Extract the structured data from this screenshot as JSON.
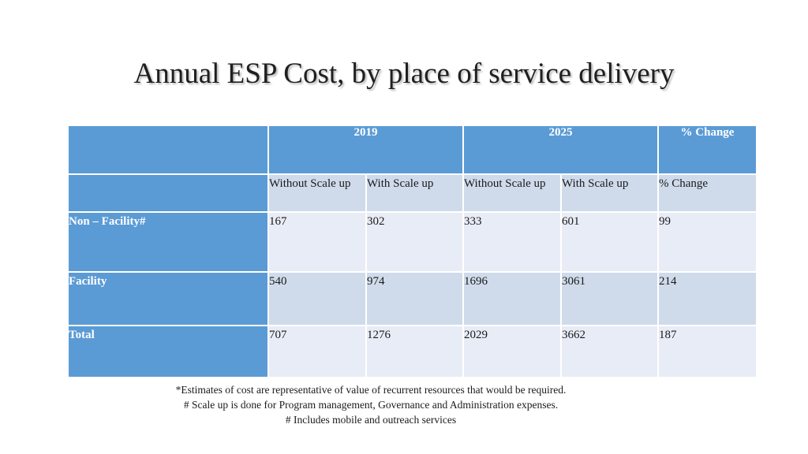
{
  "title": "Annual ESP Cost, by place of service delivery",
  "table": {
    "header": {
      "blank": "",
      "y2019": "2019",
      "y2025": "2025",
      "change": "% Change"
    },
    "subheader": {
      "blank": "",
      "without_2019": "Without Scale up",
      "with_2019": "With Scale up",
      "without_2025": "Without Scale up",
      "with_2025": "With Scale up",
      "change": "% Change"
    },
    "rows": [
      {
        "label": "Non – Facility#",
        "w19": "167",
        "s19": "302",
        "w25": "333",
        "s25": "601",
        "chg": "99"
      },
      {
        "label": "Facility",
        "w19": "540",
        "s19": "974",
        "w25": "1696",
        "s25": "3061",
        "chg": "214"
      },
      {
        "label": "Total",
        "w19": "707",
        "s19": "1276",
        "w25": "2029",
        "s25": "3662",
        "chg": "187"
      }
    ]
  },
  "notes": [
    "*Estimates of cost are representative of value of recurrent resources that would be required.",
    "# Scale up is done for Program management, Governance and Administration expenses.",
    "# Includes mobile and outreach services"
  ],
  "colors": {
    "header_blue": "#5b9bd5",
    "row_dark": "#cfdbeb",
    "row_light": "#e8ecf6"
  }
}
